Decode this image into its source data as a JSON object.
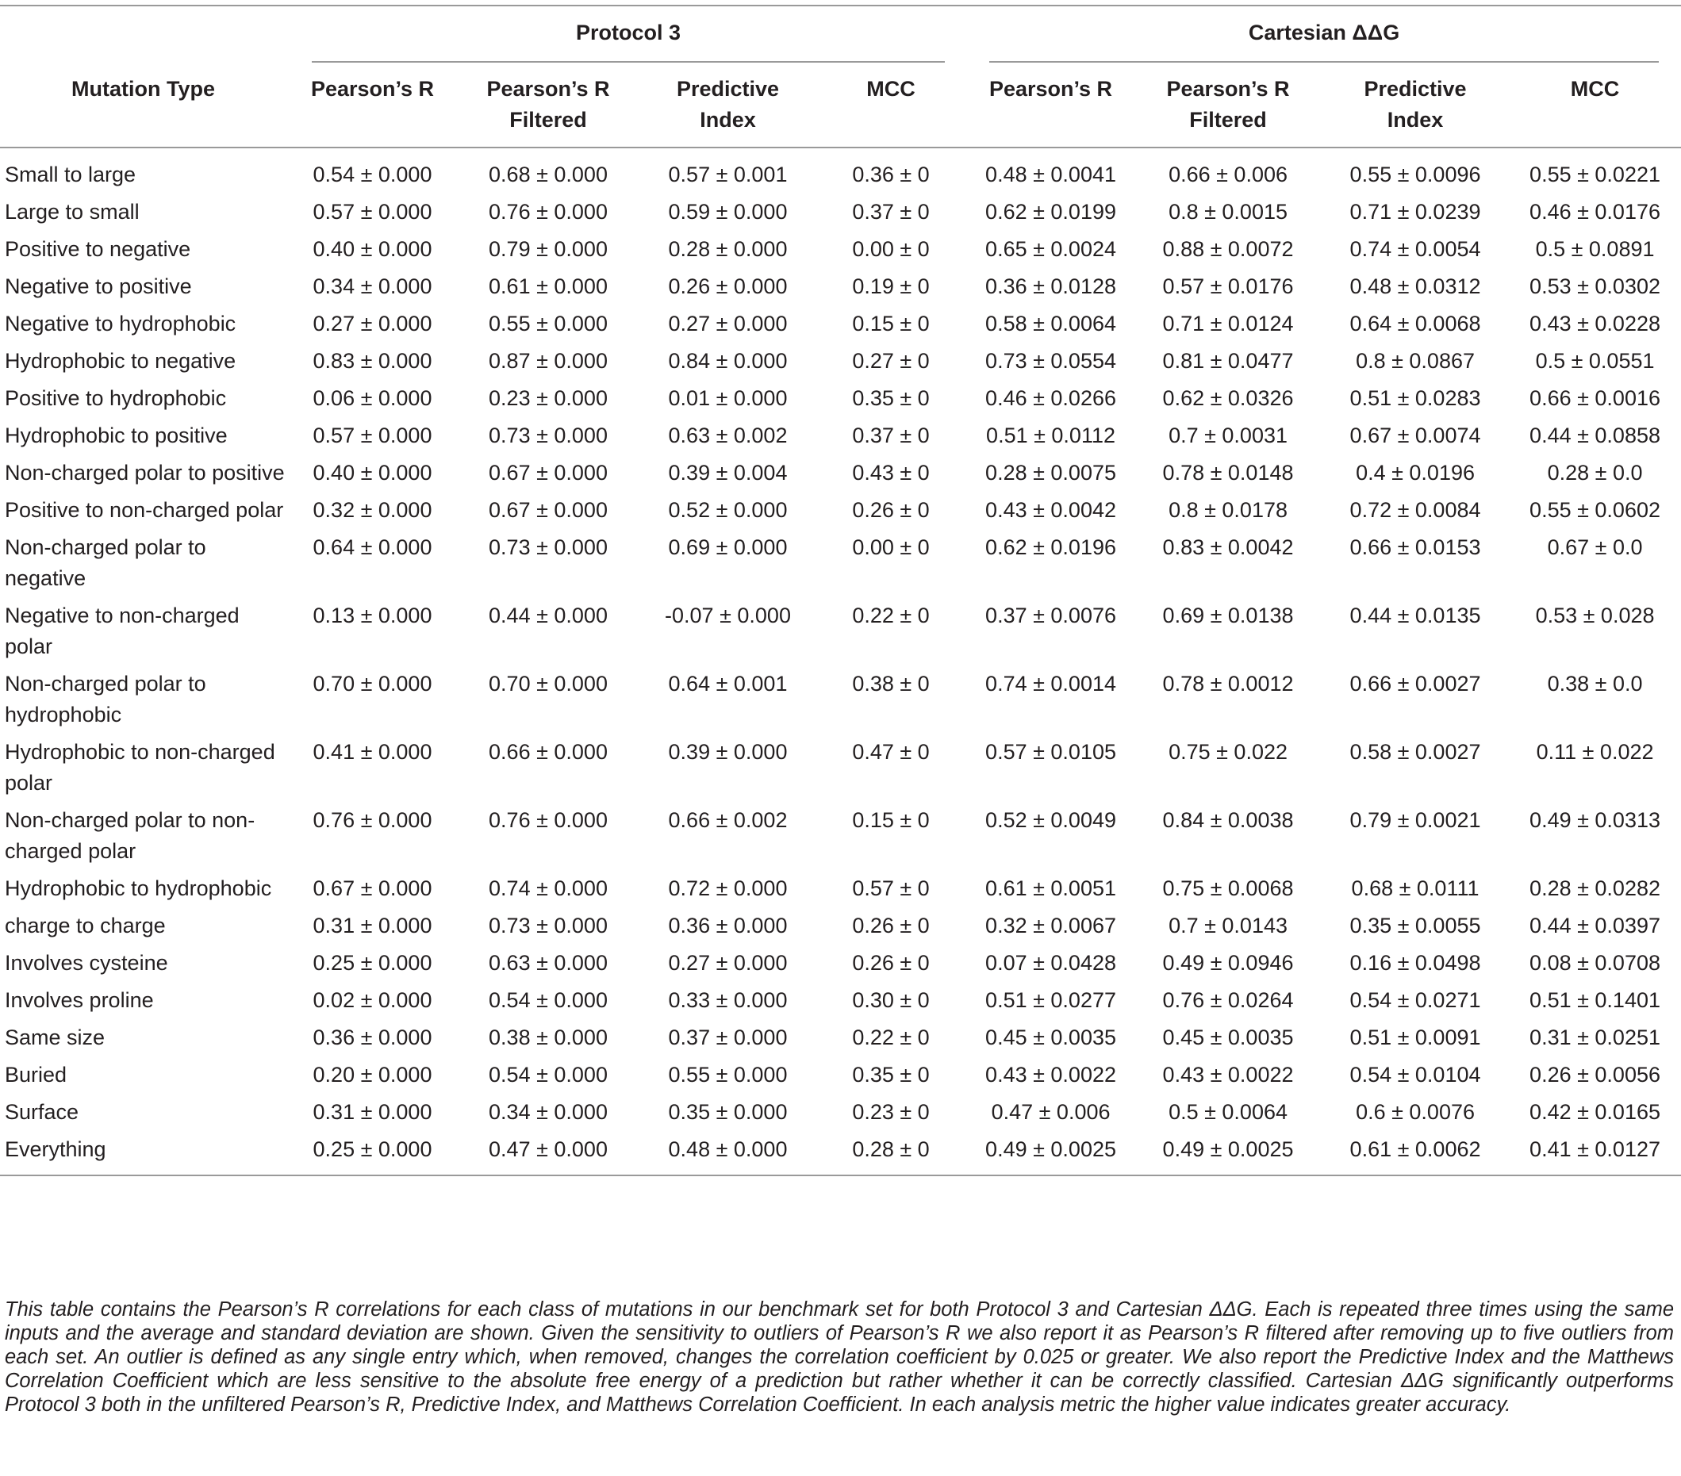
{
  "table": {
    "column_groups": [
      {
        "label": "Protocol 3",
        "span": 4
      },
      {
        "label": "Cartesian ΔΔG",
        "span": 4
      }
    ],
    "header": [
      "Mutation Type",
      "Pearson’s R",
      "Pearson’s R Filtered",
      "Predictive Index",
      "MCC",
      "Pearson’s R",
      "Pearson’s R Filtered",
      "Predictive Index",
      "MCC"
    ],
    "rows": [
      [
        "Small to large",
        "0.54 ± 0.000",
        "0.68 ± 0.000",
        "0.57 ± 0.001",
        "0.36 ± 0",
        "0.48 ± 0.0041",
        "0.66 ± 0.006",
        "0.55 ± 0.0096",
        "0.55 ± 0.0221"
      ],
      [
        "Large to small",
        "0.57 ± 0.000",
        "0.76 ± 0.000",
        "0.59 ± 0.000",
        "0.37 ± 0",
        "0.62 ± 0.0199",
        "0.8 ± 0.0015",
        "0.71 ± 0.0239",
        "0.46 ± 0.0176"
      ],
      [
        "Positive to negative",
        "0.40 ± 0.000",
        "0.79 ± 0.000",
        "0.28 ± 0.000",
        "0.00 ± 0",
        "0.65 ± 0.0024",
        "0.88 ± 0.0072",
        "0.74 ± 0.0054",
        "0.5 ± 0.0891"
      ],
      [
        "Negative to positive",
        "0.34 ± 0.000",
        "0.61 ± 0.000",
        "0.26 ± 0.000",
        "0.19 ± 0",
        "0.36 ± 0.0128",
        "0.57 ± 0.0176",
        "0.48 ± 0.0312",
        "0.53 ± 0.0302"
      ],
      [
        "Negative to hydrophobic",
        "0.27 ± 0.000",
        "0.55 ± 0.000",
        "0.27 ± 0.000",
        "0.15 ± 0",
        "0.58 ± 0.0064",
        "0.71 ± 0.0124",
        "0.64 ± 0.0068",
        "0.43 ± 0.0228"
      ],
      [
        "Hydrophobic to negative",
        "0.83 ± 0.000",
        "0.87 ± 0.000",
        "0.84 ± 0.000",
        "0.27 ± 0",
        "0.73 ± 0.0554",
        "0.81 ± 0.0477",
        "0.8 ± 0.0867",
        "0.5 ± 0.0551"
      ],
      [
        "Positive to hydrophobic",
        "0.06 ± 0.000",
        "0.23 ± 0.000",
        "0.01 ± 0.000",
        "0.35 ± 0",
        "0.46 ± 0.0266",
        "0.62 ± 0.0326",
        "0.51 ± 0.0283",
        "0.66 ± 0.0016"
      ],
      [
        "Hydrophobic to positive",
        "0.57 ± 0.000",
        "0.73 ± 0.000",
        "0.63 ± 0.002",
        "0.37 ± 0",
        "0.51 ± 0.0112",
        "0.7 ± 0.0031",
        "0.67 ± 0.0074",
        "0.44 ± 0.0858"
      ],
      [
        "Non-charged polar to positive",
        "0.40 ± 0.000",
        "0.67 ± 0.000",
        "0.39 ± 0.004",
        "0.43 ± 0",
        "0.28 ± 0.0075",
        "0.78 ± 0.0148",
        "0.4 ± 0.0196",
        "0.28 ± 0.0"
      ],
      [
        "Positive to non-charged polar",
        "0.32 ± 0.000",
        "0.67 ± 0.000",
        "0.52 ± 0.000",
        "0.26 ± 0",
        "0.43 ± 0.0042",
        "0.8 ± 0.0178",
        "0.72 ± 0.0084",
        "0.55 ± 0.0602"
      ],
      [
        "Non-charged polar to negative",
        "0.64 ± 0.000",
        "0.73 ± 0.000",
        "0.69 ± 0.000",
        "0.00 ± 0",
        "0.62 ± 0.0196",
        "0.83 ± 0.0042",
        "0.66 ± 0.0153",
        "0.67 ± 0.0"
      ],
      [
        "Negative to non-charged polar",
        "0.13 ± 0.000",
        "0.44 ± 0.000",
        "-0.07 ± 0.000",
        "0.22 ± 0",
        "0.37 ± 0.0076",
        "0.69 ± 0.0138",
        "0.44 ± 0.0135",
        "0.53 ± 0.028"
      ],
      [
        "Non-charged polar to hydrophobic",
        "0.70 ± 0.000",
        "0.70 ± 0.000",
        "0.64 ± 0.001",
        "0.38 ± 0",
        "0.74 ± 0.0014",
        "0.78 ± 0.0012",
        "0.66 ± 0.0027",
        "0.38 ± 0.0"
      ],
      [
        "Hydrophobic to non-charged polar",
        "0.41 ± 0.000",
        "0.66 ± 0.000",
        "0.39 ± 0.000",
        "0.47 ± 0",
        "0.57 ± 0.0105",
        "0.75 ± 0.022",
        "0.58 ± 0.0027",
        "0.11 ± 0.022"
      ],
      [
        "Non-charged polar to non-charged polar",
        "0.76 ± 0.000",
        "0.76 ± 0.000",
        "0.66 ± 0.002",
        "0.15 ± 0",
        "0.52 ± 0.0049",
        "0.84 ± 0.0038",
        "0.79 ± 0.0021",
        "0.49 ± 0.0313"
      ],
      [
        "Hydrophobic to hydrophobic",
        "0.67 ± 0.000",
        "0.74 ± 0.000",
        "0.72 ± 0.000",
        "0.57 ± 0",
        "0.61 ± 0.0051",
        "0.75 ± 0.0068",
        "0.68 ± 0.0111",
        "0.28 ± 0.0282"
      ],
      [
        "charge to charge",
        "0.31 ± 0.000",
        "0.73 ± 0.000",
        "0.36 ± 0.000",
        "0.26 ± 0",
        "0.32 ± 0.0067",
        "0.7 ± 0.0143",
        "0.35 ± 0.0055",
        "0.44 ± 0.0397"
      ],
      [
        "Involves cysteine",
        "0.25 ± 0.000",
        "0.63 ± 0.000",
        "0.27 ± 0.000",
        "0.26 ± 0",
        "0.07 ± 0.0428",
        "0.49 ± 0.0946",
        "0.16 ± 0.0498",
        "0.08 ± 0.0708"
      ],
      [
        "Involves proline",
        "0.02 ± 0.000",
        "0.54 ± 0.000",
        "0.33 ± 0.000",
        "0.30 ± 0",
        "0.51 ± 0.0277",
        "0.76 ± 0.0264",
        "0.54 ± 0.0271",
        "0.51 ± 0.1401"
      ],
      [
        "Same size",
        "0.36 ± 0.000",
        "0.38 ± 0.000",
        "0.37 ± 0.000",
        "0.22 ± 0",
        "0.45 ± 0.0035",
        "0.45 ± 0.0035",
        "0.51 ± 0.0091",
        "0.31 ± 0.0251"
      ],
      [
        "Buried",
        "0.20 ± 0.000",
        "0.54 ± 0.000",
        "0.55 ± 0.000",
        "0.35 ± 0",
        "0.43 ± 0.0022",
        "0.43 ± 0.0022",
        "0.54 ± 0.0104",
        "0.26 ± 0.0056"
      ],
      [
        "Surface",
        "0.31 ± 0.000",
        "0.34 ± 0.000",
        "0.35 ± 0.000",
        "0.23 ± 0",
        "0.47 ± 0.006",
        "0.5 ± 0.0064",
        "0.6 ± 0.0076",
        "0.42 ± 0.0165"
      ],
      [
        "Everything",
        "0.25 ± 0.000",
        "0.47 ± 0.000",
        "0.48 ± 0.000",
        "0.28 ± 0",
        "0.49 ± 0.0025",
        "0.49 ± 0.0025",
        "0.61 ± 0.0062",
        "0.41 ± 0.0127"
      ]
    ]
  },
  "caption": "This table contains the Pearson’s R correlations for each class of mutations in our benchmark set for both Protocol 3 and Cartesian ΔΔG. Each is repeated three times using the same inputs and the average and standard deviation are shown. Given the sensitivity to outliers of Pearson’s R we also report it as Pearson’s R filtered after removing up to five outliers from each set. An outlier is defined as any single entry which, when removed, changes the correlation coefficient by 0.025 or greater. We also report the Predictive Index and the Matthews Correlation Coefficient which are less sensitive to the absolute free energy of a prediction but rather whether it can be correctly classified. Cartesian ΔΔG significantly outperforms Protocol 3 both in the unfiltered Pearson’s R, Predictive Index, and Matthews Correlation Coefficient. In each analysis metric the higher value indicates greater accuracy."
}
